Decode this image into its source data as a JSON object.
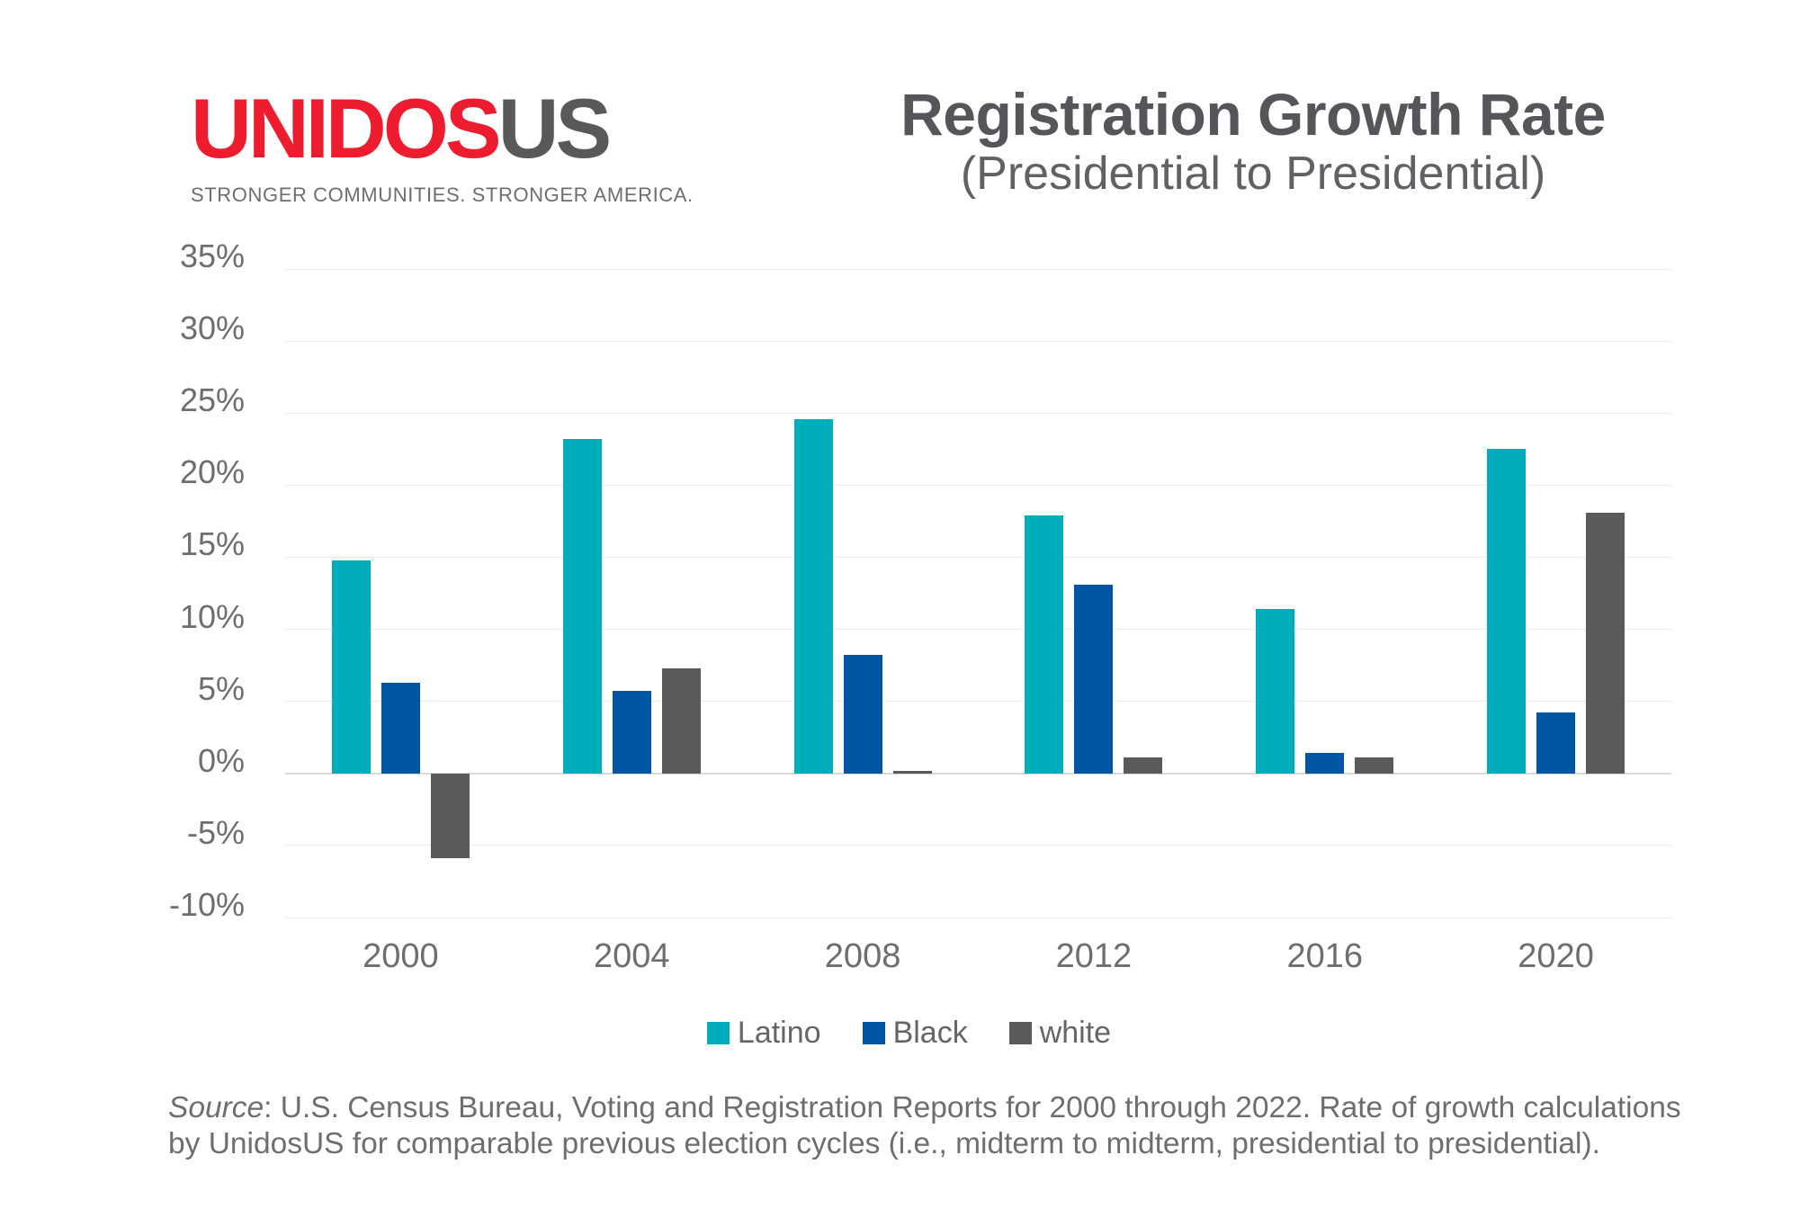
{
  "logo": {
    "part1": "UNIDOS",
    "part2": "US",
    "tagline": "STRONGER COMMUNITIES. STRONGER AMERICA."
  },
  "header": {
    "title": "Registration Growth Rate",
    "subtitle": "(Presidential to Presidential)"
  },
  "chart_data": {
    "type": "bar",
    "title": "Registration Growth Rate (Presidential to Presidential)",
    "categories": [
      "2000",
      "2004",
      "2008",
      "2012",
      "2016",
      "2020"
    ],
    "series": [
      {
        "name": "Latino",
        "color": "#00adbc",
        "values": [
          14.8,
          23.2,
          24.6,
          17.9,
          11.4,
          22.5
        ]
      },
      {
        "name": "Black",
        "color": "#0055a5",
        "values": [
          6.3,
          5.7,
          8.2,
          13.1,
          1.4,
          4.2
        ]
      },
      {
        "name": "white",
        "color": "#595a5c",
        "values": [
          -5.9,
          7.3,
          0.2,
          1.1,
          1.1,
          18.1
        ]
      }
    ],
    "y_ticks": [
      "35%",
      "30%",
      "25%",
      "20%",
      "15%",
      "10%",
      "5%",
      "0%",
      "-5%",
      "-10%"
    ],
    "ylim": [
      -10,
      35
    ],
    "xlabel": "",
    "ylabel": "",
    "grid": true,
    "legend_position": "bottom"
  },
  "source": {
    "label": "Source",
    "line1_rest": ": U.S. Census Bureau, Voting and Registration Reports for 2000 through 2022. Rate of growth calculations",
    "line2": "by UnidosUS for comparable previous election cycles (i.e., midterm to midterm, presidential to presidential)."
  },
  "theme": {
    "logo_red": "#ed1c2e",
    "logo_gray": "#58595b",
    "title_color": "#54565a",
    "text_gray": "#6d6e71",
    "grid_color": "#ececec",
    "zero_line_color": "#d9dadb",
    "background": "#ffffff"
  }
}
